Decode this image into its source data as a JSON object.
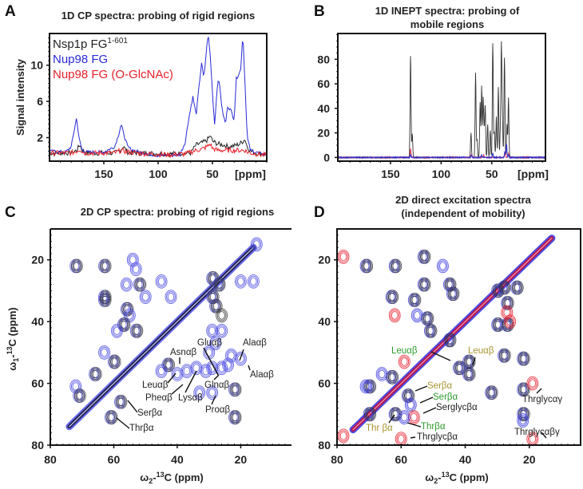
{
  "chart_data": [
    {
      "id": "A",
      "type": "line",
      "panel_label": "A",
      "title": "1D CP spectra: probing of rigid regions",
      "xlabel": "[ppm]",
      "ylabel": "Signal intensity",
      "xlim": [
        200,
        0
      ],
      "ylim": [
        -0.6,
        13.5
      ],
      "xticks": [
        150,
        100,
        50
      ],
      "yticks": [
        2,
        6,
        10
      ],
      "legend_position": "top-left",
      "series": [
        {
          "name": "Nsp1p FG",
          "superscript": "1-601",
          "color": "#222222",
          "x": [
            200,
            180,
            175,
            172,
            170,
            165,
            140,
            135,
            132,
            128,
            120,
            90,
            70,
            65,
            60,
            55,
            52,
            50,
            45,
            40,
            35,
            30,
            25,
            20,
            18,
            15,
            10,
            5,
            0
          ],
          "y": [
            0.3,
            0.3,
            0.6,
            1.2,
            0.6,
            0.3,
            0.3,
            0.6,
            1.0,
            0.4,
            0.3,
            0.2,
            0.3,
            1.2,
            1.4,
            1.7,
            2.2,
            1.6,
            1.3,
            1.2,
            1.0,
            1.1,
            1.3,
            1.8,
            1.0,
            0.5,
            0.3,
            0.2,
            0.1
          ]
        },
        {
          "name": "Nup98 FG",
          "color": "#2a2ad8",
          "x": [
            200,
            185,
            180,
            177,
            175,
            173,
            170,
            165,
            150,
            140,
            136,
            134,
            132,
            128,
            125,
            120,
            110,
            100,
            80,
            75,
            72,
            68,
            65,
            62,
            60,
            58,
            56,
            54,
            52,
            50,
            48,
            45,
            43,
            41,
            38,
            36,
            33,
            30,
            28,
            26,
            24,
            22,
            20,
            18,
            15,
            10,
            5,
            0
          ],
          "y": [
            0.5,
            0.4,
            1.0,
            3.0,
            4.2,
            2.0,
            0.6,
            0.4,
            0.4,
            1.0,
            2.5,
            3.5,
            2.5,
            1.0,
            0.7,
            0.5,
            0.2,
            0.0,
            0.1,
            1.5,
            4.0,
            6.5,
            4.5,
            8.0,
            10.3,
            8.5,
            11.0,
            13.5,
            11.0,
            7.0,
            3.5,
            8.5,
            7.5,
            5.0,
            3.5,
            5.5,
            5.0,
            4.0,
            8.5,
            9.0,
            9.5,
            13.5,
            8.0,
            2.0,
            0.6,
            0.4,
            0.2,
            0.1
          ]
        },
        {
          "name": "Nup98 FG (O-GlcNAc)",
          "color": "#e8202a",
          "x": [
            200,
            180,
            175,
            172,
            168,
            140,
            134,
            128,
            110,
            90,
            75,
            70,
            65,
            60,
            55,
            52,
            50,
            45,
            40,
            30,
            25,
            20,
            18,
            15,
            10,
            5,
            0
          ],
          "y": [
            0.3,
            0.3,
            0.5,
            0.7,
            0.3,
            0.3,
            0.6,
            0.4,
            0.2,
            0.1,
            0.2,
            0.4,
            0.6,
            0.7,
            1.0,
            1.3,
            0.8,
            0.6,
            0.6,
            0.6,
            0.6,
            0.6,
            0.4,
            0.3,
            0.2,
            0.1,
            0.1
          ]
        }
      ]
    },
    {
      "id": "B",
      "type": "line",
      "panel_label": "B",
      "title_lines": [
        "1D INEPT spectra: probing of",
        "mobile regions"
      ],
      "xlabel": "[ppm]",
      "ylabel": "",
      "xlim": [
        202,
        -3
      ],
      "ylim": [
        -3,
        101
      ],
      "xticks": [
        150,
        100,
        50
      ],
      "yticks": [
        0,
        20,
        40,
        60,
        80
      ],
      "series": [
        {
          "name": "Nsp1p FG",
          "color": "#333333",
          "peaks": [
            [
              130.2,
              83
            ],
            [
              128.5,
              19
            ],
            [
              70.5,
              20
            ],
            [
              66,
              69
            ],
            [
              64.5,
              15
            ],
            [
              61.5,
              45
            ],
            [
              60,
              58
            ],
            [
              58.5,
              48
            ],
            [
              57.5,
              18
            ],
            [
              56.5,
              41
            ],
            [
              54,
              27
            ],
            [
              51.5,
              22
            ],
            [
              49,
              93
            ],
            [
              47.5,
              21
            ],
            [
              45.5,
              33
            ],
            [
              43.5,
              57
            ],
            [
              41.5,
              22
            ],
            [
              40.5,
              90
            ],
            [
              39.5,
              30
            ],
            [
              37.5,
              81
            ],
            [
              35,
              27
            ],
            [
              33.5,
              49
            ]
          ]
        },
        {
          "name": "Nup98 FG",
          "color": "#3030c8",
          "peaks": [
            [
              130.2,
              2
            ],
            [
              70,
              2
            ],
            [
              60,
              2
            ],
            [
              49,
              3
            ],
            [
              37,
              5
            ],
            [
              35.5,
              11
            ],
            [
              33.5,
              2
            ]
          ]
        },
        {
          "name": "Nup98 FG (O-GlcNAc)",
          "color": "#e04060",
          "peaks": [
            [
              130.2,
              7
            ],
            [
              70,
              3
            ],
            [
              58,
              2
            ],
            [
              37,
              4
            ],
            [
              33.5,
              3
            ]
          ]
        }
      ]
    },
    {
      "id": "C",
      "type": "scatter",
      "subtype": "2D contour spectrum",
      "panel_label": "C",
      "title": "2D CP spectra: probing  of rigid regions",
      "xlabel": "ω2-13C (ppm)",
      "ylabel": "ω1-13C (ppm)",
      "xlim": [
        80,
        4
      ],
      "ylim": [
        10,
        80
      ],
      "xticks": [
        80,
        60,
        40,
        20
      ],
      "yticks": [
        20,
        40,
        60,
        80
      ],
      "diagonal": {
        "from": [
          74,
          74
        ],
        "to": [
          16,
          16
        ]
      },
      "series_colors": {
        "Nsp1p FG": "#333333",
        "Nup98 FG": "#4a4ae0"
      },
      "peaks": [
        [
          72,
          22,
          "both"
        ],
        [
          63,
          22,
          "both"
        ],
        [
          54,
          20,
          "blue"
        ],
        [
          53,
          23,
          "blue"
        ],
        [
          52,
          28,
          "both"
        ],
        [
          56,
          28,
          "blue"
        ],
        [
          42,
          32,
          "blue"
        ],
        [
          45,
          27,
          "blue"
        ],
        [
          50,
          32,
          "blue"
        ],
        [
          63,
          32,
          "both"
        ],
        [
          63,
          33,
          "both"
        ],
        [
          56,
          36,
          "both"
        ],
        [
          55,
          38,
          "blue"
        ],
        [
          57,
          41,
          "both"
        ],
        [
          53,
          43,
          "both"
        ],
        [
          59,
          43,
          "blue"
        ],
        [
          66,
          57,
          "both"
        ],
        [
          72,
          61,
          "blue"
        ],
        [
          71,
          64,
          "both"
        ],
        [
          63,
          50,
          "blue"
        ],
        [
          60,
          53,
          "both"
        ],
        [
          43,
          54,
          "both"
        ],
        [
          45,
          56,
          "blue"
        ],
        [
          40,
          57,
          "blue"
        ],
        [
          37,
          56,
          "blue"
        ],
        [
          34,
          55,
          "blue"
        ],
        [
          31,
          56,
          "blue"
        ],
        [
          29,
          55,
          "blue"
        ],
        [
          26,
          55,
          "blue"
        ],
        [
          24,
          54,
          "blue"
        ],
        [
          29,
          43,
          "blue"
        ],
        [
          26,
          43,
          "blue"
        ],
        [
          28,
          47,
          "blue"
        ],
        [
          30,
          50,
          "blue"
        ],
        [
          23,
          51,
          "blue"
        ],
        [
          20,
          52,
          "blue"
        ],
        [
          33,
          63,
          "blue"
        ],
        [
          29,
          63,
          "blue"
        ],
        [
          29,
          26,
          "both"
        ],
        [
          27,
          28,
          "both"
        ],
        [
          29,
          32,
          "both"
        ],
        [
          28,
          35,
          "both"
        ],
        [
          26,
          38,
          "black"
        ],
        [
          20,
          27,
          "blue"
        ],
        [
          16,
          27,
          "blue"
        ],
        [
          15,
          15,
          "blue"
        ],
        [
          22,
          62,
          "both"
        ],
        [
          22,
          71,
          "both"
        ],
        [
          58,
          66,
          "both"
        ],
        [
          61,
          71,
          "both"
        ]
      ],
      "annotations": [
        {
          "text": "Gluαβ",
          "color": "#222222"
        },
        {
          "text": "Alaαβ",
          "color": "#222222"
        },
        {
          "text": "Asnαβ",
          "color": "#222222"
        },
        {
          "text": "Alaαβ",
          "color": "#222222"
        },
        {
          "text": "Leuαβ",
          "color": "#222222"
        },
        {
          "text": "Glnαβ",
          "color": "#222222"
        },
        {
          "text": "Pheαβ",
          "color": "#222222"
        },
        {
          "text": "Lysαβ",
          "color": "#222222"
        },
        {
          "text": "Proαβ",
          "color": "#222222"
        },
        {
          "text": "Serβα",
          "color": "#222222"
        },
        {
          "text": "Thrβα",
          "color": "#222222"
        }
      ]
    },
    {
      "id": "D",
      "type": "scatter",
      "subtype": "2D contour spectrum",
      "panel_label": "D",
      "title_lines": [
        "2D direct excitation spectra",
        "(independent of mobility)"
      ],
      "xlabel": "ω2-13C (ppm)",
      "ylabel": "",
      "xlim": [
        80,
        4
      ],
      "ylim": [
        10,
        80
      ],
      "xticks": [
        80,
        60,
        40,
        20
      ],
      "yticks": [
        20,
        40,
        60,
        80
      ],
      "diagonal": {
        "from": [
          75,
          75
        ],
        "to": [
          13,
          13
        ]
      },
      "series_colors": {
        "Nup98 FG": "#3a3ae0",
        "Nup98 FG (O-GlcNAc)": "#e82030"
      },
      "peaks": [
        [
          71,
          22,
          "both"
        ],
        [
          62,
          22,
          "both"
        ],
        [
          53,
          19,
          "both"
        ],
        [
          78,
          19,
          "red"
        ],
        [
          53,
          28,
          "both"
        ],
        [
          47,
          22,
          "blue"
        ],
        [
          45,
          28,
          "both"
        ],
        [
          44,
          31,
          "both"
        ],
        [
          63,
          32,
          "both"
        ],
        [
          56,
          33,
          "both"
        ],
        [
          55,
          38,
          "blue"
        ],
        [
          52,
          39,
          "both"
        ],
        [
          51,
          43,
          "both"
        ],
        [
          62,
          38,
          "red"
        ],
        [
          45,
          46,
          "both"
        ],
        [
          66,
          57,
          "blue"
        ],
        [
          63,
          58,
          "both"
        ],
        [
          70,
          61,
          "both"
        ],
        [
          71,
          61,
          "blue"
        ],
        [
          59,
          53,
          "red"
        ],
        [
          42,
          55,
          "both"
        ],
        [
          39,
          53,
          "both"
        ],
        [
          39,
          57,
          "both"
        ],
        [
          30,
          41,
          "both"
        ],
        [
          27,
          41,
          "both"
        ],
        [
          26,
          40,
          "red"
        ],
        [
          28,
          51,
          "both"
        ],
        [
          22,
          52,
          "both"
        ],
        [
          30,
          30,
          "both"
        ],
        [
          28,
          29,
          "both"
        ],
        [
          24,
          29,
          "both"
        ],
        [
          27,
          34,
          "both"
        ],
        [
          27,
          37,
          "red"
        ],
        [
          32,
          63,
          "both"
        ],
        [
          22,
          62,
          "both"
        ],
        [
          22,
          70,
          "both"
        ],
        [
          22,
          72,
          "blue"
        ],
        [
          19,
          60,
          "red"
        ],
        [
          19,
          78,
          "red"
        ],
        [
          58,
          64,
          "both"
        ],
        [
          57,
          67,
          "blue"
        ],
        [
          56,
          71,
          "red"
        ],
        [
          62,
          70,
          "both"
        ],
        [
          59,
          71,
          "blue"
        ],
        [
          60,
          78,
          "red"
        ],
        [
          78,
          77,
          "red"
        ],
        [
          70,
          70,
          "both"
        ]
      ],
      "annotations": [
        {
          "text": "Leuαβ",
          "color": "#2e9a2e"
        },
        {
          "text": "Leuαβ",
          "color": "#a89530"
        },
        {
          "text": "Serβα",
          "color": "#a89530"
        },
        {
          "text": "Serβα",
          "color": "#2e9a2e"
        },
        {
          "text": "Serglycβα",
          "color": "#222222"
        },
        {
          "text": "Thrglycαγ",
          "color": "#222222"
        },
        {
          "text": "Thr βα",
          "color": "#a89530"
        },
        {
          "text": "Thrβα",
          "color": "#2e9a2e"
        },
        {
          "text": "Thrglycβα",
          "color": "#222222"
        },
        {
          "text": "Thrglycαβγ",
          "color": "#222222"
        }
      ]
    }
  ]
}
